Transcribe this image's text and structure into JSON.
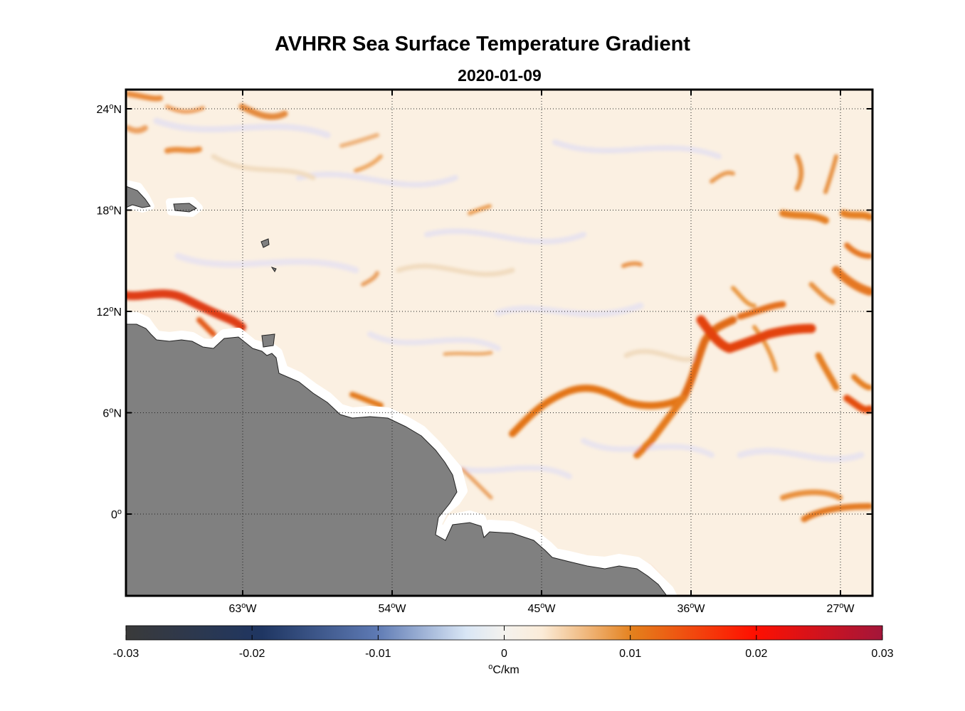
{
  "title": "AVHRR Sea Surface Temperature Gradient",
  "subtitle": "2020-01-09",
  "map": {
    "lon_ticks": [
      {
        "value": -63,
        "deg": "63",
        "hemi": "W"
      },
      {
        "value": -54,
        "deg": "54",
        "hemi": "W"
      },
      {
        "value": -45,
        "deg": "45",
        "hemi": "W"
      },
      {
        "value": -36,
        "deg": "36",
        "hemi": "W"
      },
      {
        "value": -27,
        "deg": "27",
        "hemi": "W"
      }
    ],
    "lat_ticks": [
      {
        "value": 24,
        "deg": "24",
        "hemi": "N"
      },
      {
        "value": 18,
        "deg": "18",
        "hemi": "N"
      },
      {
        "value": 12,
        "deg": "12",
        "hemi": "N"
      },
      {
        "value": 6,
        "deg": "6",
        "hemi": "N"
      },
      {
        "value": 0,
        "deg": "0",
        "hemi": ""
      }
    ],
    "lon_range": [
      -70,
      -25
    ],
    "lat_range": [
      -5,
      25
    ],
    "land_color": "#808080",
    "grid": "dotted"
  },
  "colorbar": {
    "ticks": [
      "-0.03",
      "-0.02",
      "-0.01",
      "0",
      "0.01",
      "0.02",
      "0.03"
    ],
    "unit_symbol": "o",
    "unit": "C/km",
    "colors": [
      "#3b3b3b",
      "#1e3560",
      "#6b83b5",
      "#e6eef8",
      "#fdf3e3",
      "#e07a1a",
      "#ff1a00",
      "#a01030"
    ]
  }
}
